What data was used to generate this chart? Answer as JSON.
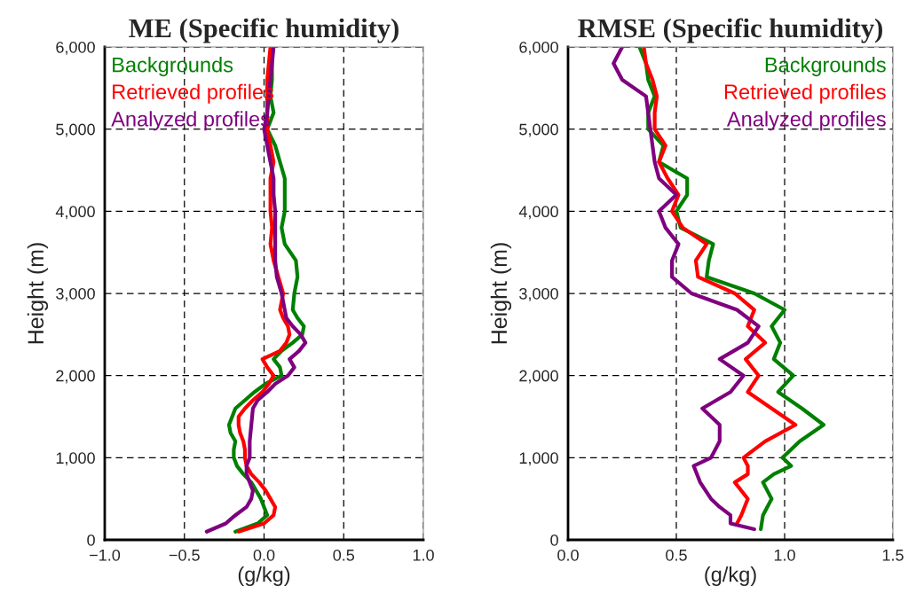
{
  "chart_data": [
    {
      "type": "line",
      "title": "ME (Specific humidity)",
      "xlabel": "(g/kg)",
      "ylabel": "Height (m)",
      "xlim": [
        -1.0,
        1.0
      ],
      "ylim": [
        0,
        6000
      ],
      "xticks": [
        {
          "value": -1.0,
          "label": "−1.0"
        },
        {
          "value": -0.5,
          "label": "−0.5"
        },
        {
          "value": 0.0,
          "label": "0.0"
        },
        {
          "value": 0.5,
          "label": "0.5"
        },
        {
          "value": 1.0,
          "label": "1.0"
        }
      ],
      "yticks": [
        0,
        {
          "value": 1000,
          "label": "1,000"
        },
        {
          "value": 2000,
          "label": "2,000"
        },
        {
          "value": 3000,
          "label": "3,000"
        },
        {
          "value": 4000,
          "label": "4,000"
        },
        {
          "value": 5000,
          "label": "5,000"
        },
        {
          "value": 6000,
          "label": "6,000"
        }
      ],
      "grid": true,
      "legend": "top left",
      "marker": "none",
      "line_style": "solid",
      "series": [
        {
          "name": "Backgrounds",
          "color": "#008000",
          "x": [
            -0.18,
            -0.04,
            0.02,
            0.0,
            -0.02,
            -0.05,
            -0.08,
            -0.13,
            -0.17,
            -0.19,
            -0.19,
            -0.18,
            -0.21,
            -0.22,
            -0.2,
            -0.18,
            -0.12,
            -0.06,
            0.01,
            0.11,
            0.1,
            0.06,
            0.11,
            0.18,
            0.24,
            0.25,
            0.21,
            0.18,
            0.19,
            0.21,
            0.2,
            0.13,
            0.11,
            0.13,
            0.13,
            0.13,
            0.1,
            0.07,
            0.02,
            0.06,
            0.04,
            0.05,
            0.05,
            0.05
          ],
          "values": [
            100,
            200,
            300,
            400,
            500,
            600,
            700,
            800,
            900,
            1000,
            1100,
            1200,
            1300,
            1400,
            1500,
            1600,
            1700,
            1800,
            1900,
            2000,
            2100,
            2200,
            2300,
            2400,
            2500,
            2600,
            2700,
            2800,
            3000,
            3200,
            3400,
            3600,
            3800,
            4000,
            4200,
            4400,
            4600,
            4800,
            5000,
            5200,
            5400,
            5600,
            5800,
            6000
          ]
        },
        {
          "name": "Retrieved profiles",
          "color": "#ff0000",
          "x": [
            -0.16,
            0.0,
            0.06,
            0.07,
            0.04,
            0.01,
            -0.03,
            -0.08,
            -0.11,
            -0.12,
            -0.12,
            -0.13,
            -0.15,
            -0.16,
            -0.16,
            -0.12,
            -0.07,
            -0.01,
            0.03,
            0.06,
            0.02,
            -0.01,
            0.1,
            0.14,
            0.16,
            0.15,
            0.12,
            0.1,
            0.12,
            0.09,
            0.06,
            0.04,
            0.05,
            0.04,
            0.04,
            0.04,
            0.06,
            0.04,
            0.02,
            0.02,
            0.02,
            0.02,
            0.03,
            0.04
          ],
          "values": [
            100,
            200,
            300,
            400,
            500,
            600,
            700,
            800,
            900,
            1000,
            1100,
            1200,
            1300,
            1400,
            1500,
            1600,
            1700,
            1800,
            1900,
            2000,
            2100,
            2200,
            2300,
            2400,
            2500,
            2600,
            2700,
            2800,
            3000,
            3200,
            3400,
            3600,
            3800,
            4000,
            4200,
            4400,
            4600,
            4800,
            5000,
            5200,
            5400,
            5600,
            5800,
            6000
          ]
        },
        {
          "name": "Analyzed profiles",
          "color": "#7f007f",
          "x": [
            -0.36,
            -0.24,
            -0.18,
            -0.11,
            -0.08,
            -0.07,
            -0.09,
            -0.11,
            -0.11,
            -0.09,
            -0.09,
            -0.08,
            -0.07,
            -0.04,
            0.02,
            0.07,
            0.15,
            0.19,
            0.16,
            0.22,
            0.26,
            0.23,
            0.18,
            0.14,
            0.13,
            0.11,
            0.08,
            0.07,
            0.07,
            0.07,
            0.07,
            0.06,
            0.06,
            0.04,
            0.02,
            0.0,
            0.02,
            0.03,
            0.04,
            0.05,
            0.06
          ],
          "values": [
            100,
            200,
            300,
            400,
            500,
            600,
            700,
            800,
            900,
            1000,
            1200,
            1400,
            1600,
            1700,
            1800,
            1900,
            2000,
            2100,
            2200,
            2300,
            2400,
            2500,
            2600,
            2700,
            2800,
            3000,
            3200,
            3400,
            3600,
            3800,
            4000,
            4200,
            4400,
            4600,
            4800,
            5000,
            5200,
            5400,
            5600,
            5800,
            6000
          ]
        }
      ]
    },
    {
      "type": "line",
      "title": "RMSE (Specific humidity)",
      "xlabel": "(g/kg)",
      "ylabel": "Height (m)",
      "xlim": [
        0.0,
        1.5
      ],
      "ylim": [
        0,
        6000
      ],
      "xticks": [
        {
          "value": 0.0,
          "label": "0.0"
        },
        {
          "value": 0.5,
          "label": "0.5"
        },
        {
          "value": 1.0,
          "label": "1.0"
        },
        {
          "value": 1.5,
          "label": "1.5"
        }
      ],
      "yticks": [
        0,
        {
          "value": 1000,
          "label": "1,000"
        },
        {
          "value": 2000,
          "label": "2,000"
        },
        {
          "value": 3000,
          "label": "3,000"
        },
        {
          "value": 4000,
          "label": "4,000"
        },
        {
          "value": 5000,
          "label": "5,000"
        },
        {
          "value": 6000,
          "label": "6,000"
        }
      ],
      "grid": true,
      "legend": "top right",
      "marker": "none",
      "line_style": "solid",
      "series": [
        {
          "name": "Backgrounds",
          "color": "#008000",
          "x": [
            0.89,
            0.9,
            0.94,
            0.9,
            0.95,
            1.03,
            0.99,
            1.07,
            1.18,
            1.08,
            0.97,
            1.04,
            0.95,
            0.98,
            0.94,
            1.0,
            0.86,
            0.64,
            0.65,
            0.67,
            0.52,
            0.5,
            0.55,
            0.55,
            0.42,
            0.44,
            0.37,
            0.37,
            0.4,
            0.37,
            0.36,
            0.33
          ],
          "values": [
            130,
            300,
            500,
            700,
            800,
            900,
            1000,
            1200,
            1400,
            1600,
            1800,
            2000,
            2200,
            2400,
            2600,
            2800,
            3000,
            3200,
            3400,
            3600,
            3800,
            4000,
            4200,
            4400,
            4600,
            4800,
            5000,
            5200,
            5400,
            5600,
            5800,
            6000
          ]
        },
        {
          "name": "Retrieved profiles",
          "color": "#ff0000",
          "x": [
            0.78,
            0.8,
            0.83,
            0.77,
            0.83,
            0.83,
            0.81,
            0.91,
            1.05,
            0.94,
            0.83,
            0.88,
            0.82,
            0.91,
            0.83,
            0.86,
            0.77,
            0.6,
            0.59,
            0.64,
            0.53,
            0.48,
            0.51,
            0.46,
            0.42,
            0.45,
            0.4,
            0.4,
            0.41,
            0.39,
            0.36,
            0.35
          ],
          "values": [
            200,
            300,
            500,
            700,
            800,
            900,
            1000,
            1200,
            1400,
            1600,
            1800,
            2000,
            2200,
            2400,
            2600,
            2800,
            3000,
            3200,
            3400,
            3600,
            3800,
            4000,
            4200,
            4400,
            4600,
            4800,
            5000,
            5200,
            5400,
            5600,
            5800,
            6000
          ]
        },
        {
          "name": "Analyzed profiles",
          "color": "#7f007f",
          "x": [
            0.86,
            0.75,
            0.75,
            0.7,
            0.66,
            0.61,
            0.58,
            0.66,
            0.7,
            0.7,
            0.62,
            0.75,
            0.81,
            0.7,
            0.83,
            0.88,
            0.78,
            0.57,
            0.48,
            0.48,
            0.51,
            0.45,
            0.42,
            0.5,
            0.42,
            0.4,
            0.39,
            0.38,
            0.37,
            0.36,
            0.25,
            0.21,
            0.25
          ],
          "values": [
            130,
            200,
            300,
            400,
            500,
            700,
            900,
            1000,
            1200,
            1400,
            1600,
            1800,
            2000,
            2200,
            2400,
            2600,
            2800,
            3000,
            3200,
            3400,
            3600,
            3800,
            4000,
            4200,
            4400,
            4600,
            4800,
            5000,
            5200,
            5400,
            5600,
            5800,
            6000
          ]
        }
      ]
    }
  ]
}
